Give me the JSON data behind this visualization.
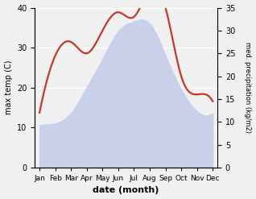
{
  "months": [
    "Jan",
    "Feb",
    "Mar",
    "Apr",
    "May",
    "Jun",
    "Jul",
    "Aug",
    "Sep",
    "Oct",
    "Nov",
    "Dec"
  ],
  "max_temp": [
    10.5,
    11.0,
    13.5,
    20.0,
    27.0,
    34.0,
    36.5,
    36.0,
    28.0,
    19.5,
    14.0,
    13.5
  ],
  "precipitation": [
    12.0,
    24.5,
    27.5,
    25.0,
    30.0,
    34.0,
    33.0,
    39.0,
    35.0,
    20.0,
    16.0,
    14.5
  ],
  "temp_color": "#c0392b",
  "temp_fill_color": "#c8d0ea",
  "ylabel_left": "max temp (C)",
  "ylabel_right": "med. precipitation (kg/m2)",
  "xlabel": "date (month)",
  "ylim_left": [
    0,
    40
  ],
  "ylim_right": [
    0,
    35
  ],
  "yticks_left": [
    0,
    10,
    20,
    30,
    40
  ],
  "yticks_right": [
    0,
    5,
    10,
    15,
    20,
    25,
    30,
    35
  ],
  "bg_color": "#f0f0f0",
  "line_width": 1.6
}
